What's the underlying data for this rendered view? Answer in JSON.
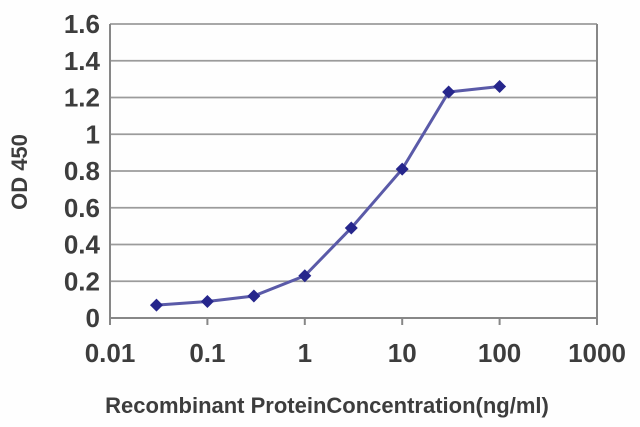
{
  "chart_data": {
    "type": "line",
    "title": "",
    "xlabel": "Recombinant ProteinConcentration(ng/ml)",
    "ylabel": "OD 450",
    "x_scale": "log10",
    "xlim": [
      0.01,
      1000
    ],
    "ylim": [
      0,
      1.6
    ],
    "grid": "horizontal",
    "legend": "none",
    "series": [
      {
        "x": [
          0.03,
          0.1,
          0.3,
          1,
          3,
          10,
          30,
          100
        ],
        "y": [
          0.07,
          0.09,
          0.12,
          0.23,
          0.49,
          0.81,
          1.23,
          1.26
        ],
        "marker": "diamond"
      }
    ],
    "x_ticks": [
      {
        "value": 0.01,
        "label": "0.01"
      },
      {
        "value": 0.1,
        "label": "0.1"
      },
      {
        "value": 1,
        "label": "1"
      },
      {
        "value": 10,
        "label": "10"
      },
      {
        "value": 100,
        "label": "100"
      },
      {
        "value": 1000,
        "label": "1000"
      }
    ],
    "y_ticks": [
      {
        "value": 0,
        "label": "0"
      },
      {
        "value": 0.2,
        "label": "0.2"
      },
      {
        "value": 0.4,
        "label": "0.4"
      },
      {
        "value": 0.6,
        "label": "0.6"
      },
      {
        "value": 0.8,
        "label": "0.8"
      },
      {
        "value": 1,
        "label": "1"
      },
      {
        "value": 1.2,
        "label": "1.2"
      },
      {
        "value": 1.4,
        "label": "1.4"
      },
      {
        "value": 1.6,
        "label": "1.6"
      }
    ],
    "colors": {
      "line": "#5a5aa8",
      "marker": "#26268c",
      "grid": "#9b9b9b",
      "axis": "#878787",
      "text": "#3d3d3d",
      "background": "#fefefe"
    }
  }
}
